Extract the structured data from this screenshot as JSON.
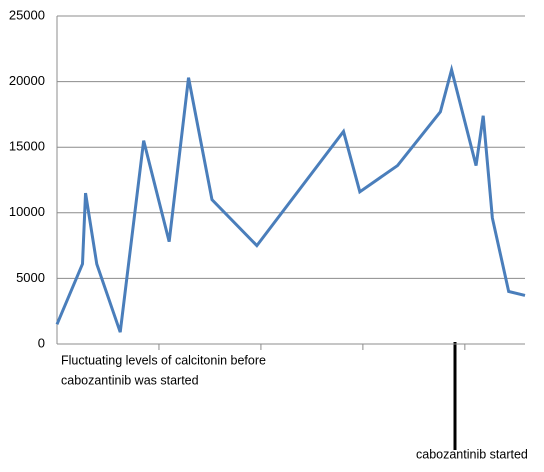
{
  "chart_data": {
    "type": "line",
    "x": [
      0,
      25,
      28,
      39,
      62,
      85,
      110,
      129,
      152,
      196,
      281,
      297,
      334,
      376,
      387,
      411,
      418,
      427,
      443,
      459
    ],
    "series": [
      {
        "color": "#4a7ebb",
        "values": [
          1500,
          6100,
          11500,
          6100,
          900,
          15500,
          7800,
          20300,
          11000,
          7500,
          16200,
          11600,
          13600,
          17700,
          20900,
          13600,
          17400,
          9600,
          4000,
          3700
        ]
      }
    ],
    "xlim": [
      0,
      459
    ],
    "xticks": [
      100,
      200,
      300,
      400
    ],
    "ylim": [
      0,
      25000
    ],
    "yticks": [
      0,
      5000,
      10000,
      15000,
      20000,
      25000
    ],
    "grid": true,
    "annotations": [
      [
        "Fluctuating levels of calcitonin before",
        "cabozantinib was started"
      ],
      [
        "cabozantinib started"
      ]
    ]
  }
}
